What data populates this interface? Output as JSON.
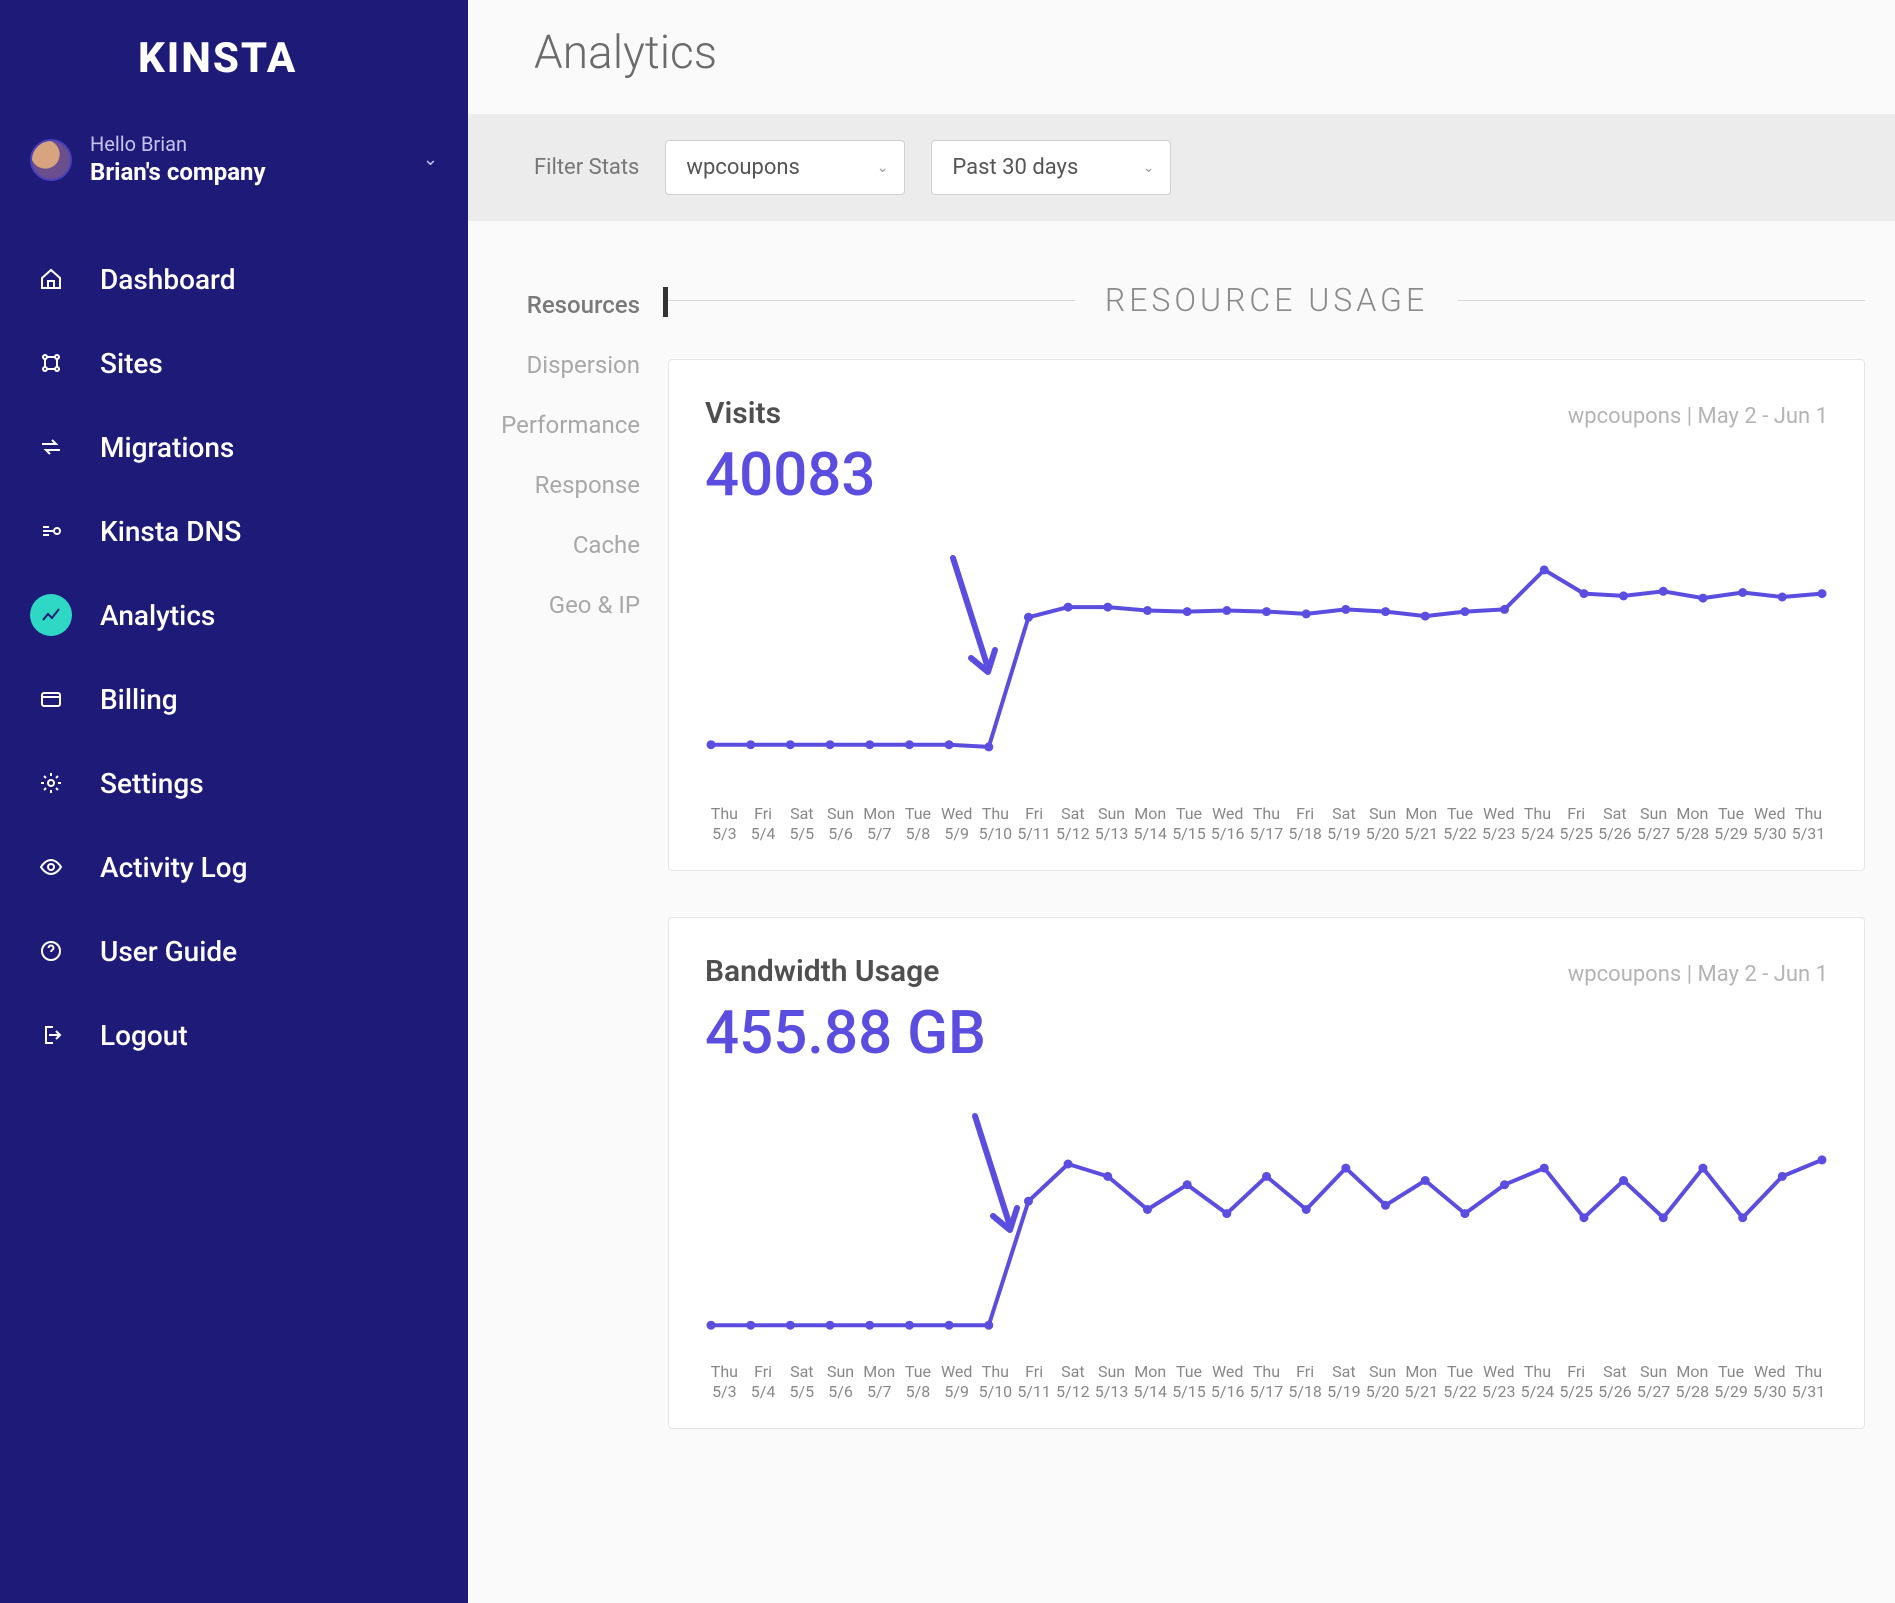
{
  "brand": "KINSTA",
  "user": {
    "hello": "Hello Brian",
    "company": "Brian's company"
  },
  "nav": [
    {
      "id": "dashboard",
      "label": "Dashboard",
      "icon": "home"
    },
    {
      "id": "sites",
      "label": "Sites",
      "icon": "sites"
    },
    {
      "id": "migrations",
      "label": "Migrations",
      "icon": "migrate"
    },
    {
      "id": "dns",
      "label": "Kinsta DNS",
      "icon": "dns"
    },
    {
      "id": "analytics",
      "label": "Analytics",
      "icon": "analytics",
      "active": true
    },
    {
      "id": "billing",
      "label": "Billing",
      "icon": "card"
    },
    {
      "id": "settings",
      "label": "Settings",
      "icon": "gear"
    },
    {
      "id": "activity",
      "label": "Activity Log",
      "icon": "eye"
    },
    {
      "id": "guide",
      "label": "User Guide",
      "icon": "help"
    },
    {
      "id": "logout",
      "label": "Logout",
      "icon": "logout"
    }
  ],
  "page": {
    "title": "Analytics"
  },
  "filter": {
    "label": "Filter Stats",
    "site": "wpcoupons",
    "period": "Past 30 days"
  },
  "subnav": [
    {
      "id": "resources",
      "label": "Resources",
      "active": true
    },
    {
      "id": "dispersion",
      "label": "Dispersion"
    },
    {
      "id": "performance",
      "label": "Performance"
    },
    {
      "id": "response",
      "label": "Response"
    },
    {
      "id": "cache",
      "label": "Cache"
    },
    {
      "id": "geoip",
      "label": "Geo & IP"
    }
  ],
  "panel": {
    "title": "RESOURCE USAGE"
  },
  "charts": {
    "common": {
      "line_color": "#5b4de0",
      "line_width": 4,
      "marker_radius": 4.5,
      "marker_fill": "#5b4de0",
      "background": "#ffffff",
      "axis_text_color": "#8c8c8c",
      "arrow_color": "#5b4de0",
      "x_labels": [
        {
          "dow": "Thu",
          "md": "5/3"
        },
        {
          "dow": "Fri",
          "md": "5/4"
        },
        {
          "dow": "Sat",
          "md": "5/5"
        },
        {
          "dow": "Sun",
          "md": "5/6"
        },
        {
          "dow": "Mon",
          "md": "5/7"
        },
        {
          "dow": "Tue",
          "md": "5/8"
        },
        {
          "dow": "Wed",
          "md": "5/9"
        },
        {
          "dow": "Thu",
          "md": "5/10"
        },
        {
          "dow": "Fri",
          "md": "5/11"
        },
        {
          "dow": "Sat",
          "md": "5/12"
        },
        {
          "dow": "Sun",
          "md": "5/13"
        },
        {
          "dow": "Mon",
          "md": "5/14"
        },
        {
          "dow": "Tue",
          "md": "5/15"
        },
        {
          "dow": "Wed",
          "md": "5/16"
        },
        {
          "dow": "Thu",
          "md": "5/17"
        },
        {
          "dow": "Fri",
          "md": "5/18"
        },
        {
          "dow": "Sat",
          "md": "5/19"
        },
        {
          "dow": "Sun",
          "md": "5/20"
        },
        {
          "dow": "Mon",
          "md": "5/21"
        },
        {
          "dow": "Tue",
          "md": "5/22"
        },
        {
          "dow": "Wed",
          "md": "5/23"
        },
        {
          "dow": "Thu",
          "md": "5/24"
        },
        {
          "dow": "Fri",
          "md": "5/25"
        },
        {
          "dow": "Sat",
          "md": "5/26"
        },
        {
          "dow": "Sun",
          "md": "5/27"
        },
        {
          "dow": "Mon",
          "md": "5/28"
        },
        {
          "dow": "Tue",
          "md": "5/29"
        },
        {
          "dow": "Wed",
          "md": "5/30"
        },
        {
          "dow": "Thu",
          "md": "5/31"
        }
      ]
    },
    "visits": {
      "title": "Visits",
      "value": "40083",
      "meta": "wpcoupons  |  May 2 - Jun 1",
      "ylim": [
        0,
        2200
      ],
      "y": [
        420,
        420,
        420,
        420,
        420,
        420,
        420,
        400,
        1550,
        1640,
        1640,
        1610,
        1600,
        1610,
        1600,
        1580,
        1620,
        1600,
        1560,
        1600,
        1620,
        1970,
        1760,
        1740,
        1780,
        1720,
        1770,
        1730,
        1760
      ]
    },
    "bandwidth": {
      "title": "Bandwidth Usage",
      "value": "455.88 GB",
      "meta": "wpcoupons  |  May 2 - Jun 1",
      "ylim": [
        0,
        30
      ],
      "y": [
        3,
        3,
        3,
        3,
        3,
        3,
        3,
        3,
        18,
        22.5,
        21,
        17,
        20,
        16.5,
        21,
        17,
        22,
        17.5,
        20.5,
        16.5,
        20,
        22,
        16,
        20.5,
        16,
        22,
        16,
        21,
        23
      ]
    }
  }
}
